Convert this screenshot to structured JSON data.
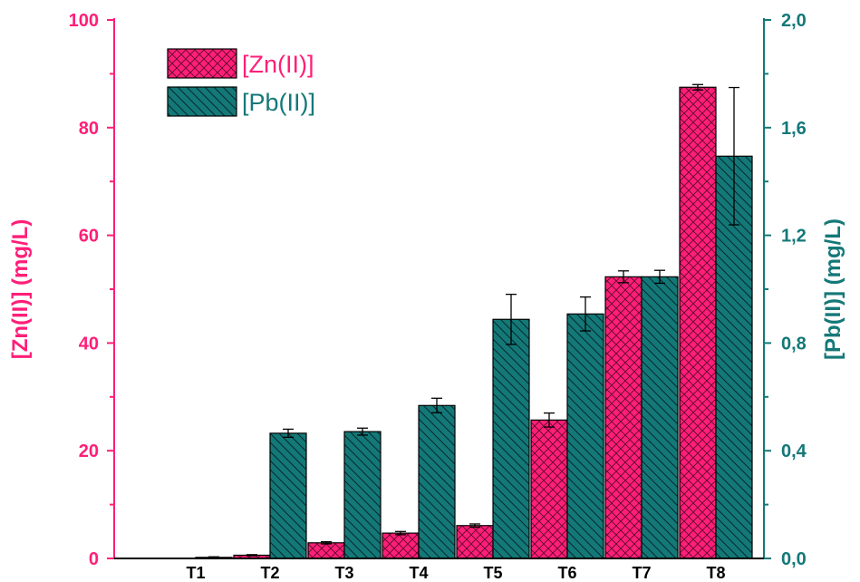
{
  "chart_data": {
    "type": "bar",
    "categories": [
      "T1",
      "T2",
      "T3",
      "T4",
      "T5",
      "T6",
      "T7",
      "T8"
    ],
    "series": [
      {
        "name": "[Zn(II)]",
        "axis": "left",
        "color": "#ff1e78",
        "pattern": "crosshatch",
        "values": [
          0,
          0.6,
          2.9,
          4.7,
          6.1,
          25.7,
          52.3,
          87.5
        ],
        "errors": [
          0,
          0.1,
          0.2,
          0.3,
          0.3,
          1.3,
          1.1,
          0.5
        ]
      },
      {
        "name": "[Pb(II)]",
        "axis": "right",
        "color": "#147878",
        "pattern": "diagonal",
        "values": [
          0.004,
          0.465,
          0.471,
          0.568,
          0.888,
          0.908,
          1.046,
          1.494
        ],
        "errors": [
          0.002,
          0.015,
          0.013,
          0.027,
          0.093,
          0.063,
          0.024,
          0.255
        ]
      }
    ],
    "y_left": {
      "label": "[Zn(II)] (mg/L)",
      "ylim": [
        0,
        100
      ],
      "ticks": [
        0,
        20,
        40,
        60,
        80,
        100
      ],
      "tick_labels": [
        "0",
        "20",
        "40",
        "60",
        "80",
        "100"
      ],
      "color": "#ff1e78"
    },
    "y_right": {
      "label": "[Pb(II)] (mg/L)",
      "ylim": [
        0,
        2.0
      ],
      "ticks": [
        0,
        0.4,
        0.8,
        1.2,
        1.6,
        2.0
      ],
      "tick_labels": [
        "0,0",
        "0,4",
        "0,8",
        "1,2",
        "1,6",
        "2,0"
      ],
      "color": "#147878"
    },
    "legend": {
      "placement": "top-left",
      "entries": [
        "[Zn(II)]",
        "[Pb(II)]"
      ]
    },
    "grid": false
  }
}
